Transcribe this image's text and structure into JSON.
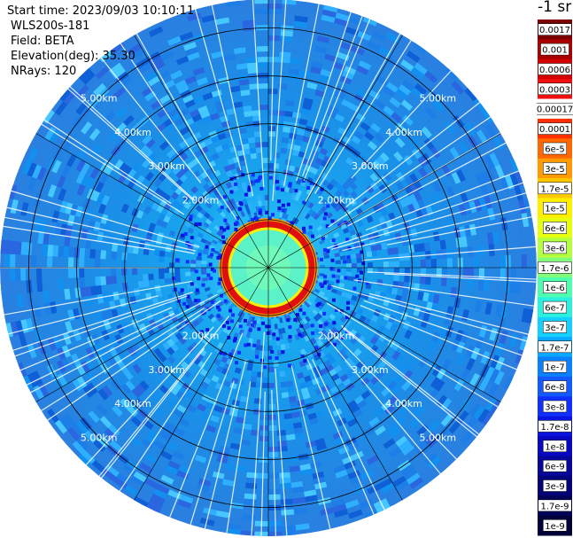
{
  "info": {
    "start_time": "Start time: 2023/09/03 10:10:11",
    "device": "WLS200s-181",
    "field": "Field: BETA",
    "elevation": "Elevation(deg): 35.30",
    "nrays": "NRays: 120"
  },
  "chart_data": {
    "type": "heatmap",
    "projection": "polar-ppi",
    "title": "",
    "field": "BETA",
    "elevation_deg": 35.3,
    "nrays": 120,
    "range_rings_km": [
      1,
      2,
      3,
      4,
      5
    ],
    "range_labels": [
      "2.00km",
      "3.00km",
      "4.00km",
      "5.00km"
    ],
    "max_range_km": 5.6,
    "spoke_directions_deg": [
      0,
      30,
      60,
      90,
      120,
      150,
      180,
      210,
      240,
      270,
      300,
      330
    ],
    "features": {
      "near_ring_radius_km": 0.85,
      "near_ring_value": "1e-5 to 1e-4",
      "inner_value": "3e-7",
      "background_value": "1e-8 to 1.7e-8"
    },
    "colorbar": {
      "unit_label": "-1 sr",
      "ticks": [
        "0.0017",
        "0.001",
        "0.0006",
        "0.0003",
        "0.00017",
        "0.0001",
        "6e-5",
        "3e-5",
        "1.7e-5",
        "1e-5",
        "6e-6",
        "3e-6",
        "1.7e-6",
        "1e-6",
        "6e-7",
        "3e-7",
        "1.7e-7",
        "1e-7",
        "6e-8",
        "3e-8",
        "1.7e-8",
        "1e-8",
        "6e-9",
        "3e-9",
        "1.7e-9",
        "1e-9"
      ],
      "colors": [
        "#7a0000",
        "#a80000",
        "#d40000",
        "#f01010",
        "#ffffff",
        "#ff3000",
        "#ff6800",
        "#ff9a00",
        "#ffc800",
        "#ffee00",
        "#e6ff10",
        "#b4ff40",
        "#80ff78",
        "#4dffae",
        "#2af0e0",
        "#14d0ff",
        "#0aa8ff",
        "#0a80ff",
        "#1458ff",
        "#1030ff",
        "#0a14e0",
        "#0808c0",
        "#06069a",
        "#040478",
        "#020258",
        "#01013a"
      ]
    }
  }
}
